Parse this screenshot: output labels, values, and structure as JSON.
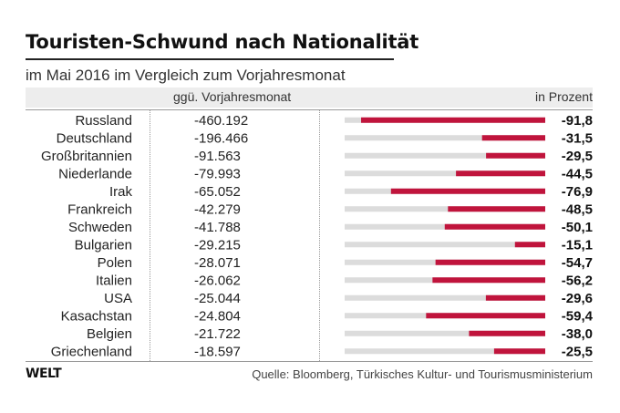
{
  "colors": {
    "bar": "#c0143c",
    "track": "#dcdcdc",
    "header_bg": "#ededed"
  },
  "header": {
    "title": "Touristen-Schwund nach Nationalität",
    "subtitle": "im Mai 2016 im Vergleich zum Vorjahresmonat"
  },
  "columns": {
    "change": "ggü. Vorjahresmonat",
    "percent": "in Prozent"
  },
  "footer": {
    "logo": "WELT",
    "source": "Quelle: Bloomberg, Türkisches Kultur- und Tourismusministerium"
  },
  "chart_data": {
    "type": "bar",
    "title": "Touristen-Schwund nach Nationalität",
    "subtitle": "im Mai 2016 im Vergleich zum Vorjahresmonat",
    "unit": "Prozent",
    "xlim": [
      -100,
      0
    ],
    "categories": [
      "Russland",
      "Deutschland",
      "Großbritannien",
      "Niederlande",
      "Irak",
      "Frankreich",
      "Schweden",
      "Bulgarien",
      "Polen",
      "Italien",
      "USA",
      "Kasachstan",
      "Belgien",
      "Griechenland"
    ],
    "absolute_labels": [
      "-460.192",
      "-196.466",
      "-91.563",
      "-79.993",
      "-65.052",
      "-42.279",
      "-41.788",
      "-29.215",
      "-28.071",
      "-26.062",
      "-25.044",
      "-24.804",
      "-21.722",
      "-18.597"
    ],
    "values": [
      -91.8,
      -31.5,
      -29.5,
      -44.5,
      -76.9,
      -48.5,
      -50.1,
      -15.1,
      -54.7,
      -56.2,
      -29.6,
      -59.4,
      -38.0,
      -25.5
    ],
    "value_labels": [
      "-91,8",
      "-31,5",
      "-29,5",
      "-44,5",
      "-76,9",
      "-48,5",
      "-50,1",
      "-15,1",
      "-54,7",
      "-56,2",
      "-29,6",
      "-59,4",
      "-38,0",
      "-25,5"
    ]
  }
}
